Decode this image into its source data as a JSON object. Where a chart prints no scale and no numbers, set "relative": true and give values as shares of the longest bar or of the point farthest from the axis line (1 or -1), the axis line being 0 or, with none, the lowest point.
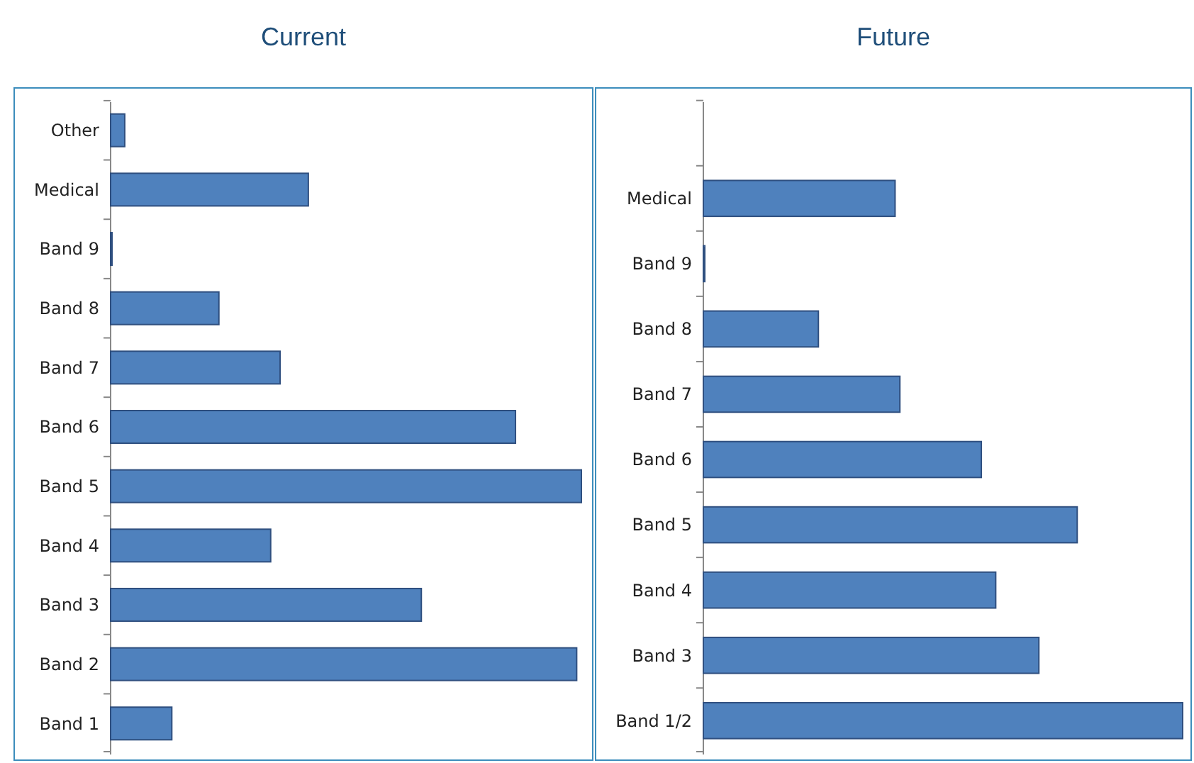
{
  "chart_data": [
    {
      "type": "bar",
      "orientation": "horizontal",
      "relative": true,
      "title": "Current",
      "categories": [
        "Other",
        "Medical",
        "Band 9",
        "Band 8",
        "Band 7",
        "Band 6",
        "Band 5",
        "Band 4",
        "Band 3",
        "Band 2",
        "Band 1"
      ],
      "values": [
        0.03,
        0.42,
        0.003,
        0.23,
        0.36,
        0.86,
        1,
        0.34,
        0.66,
        0.99,
        0.13
      ],
      "color": "#4f81bd"
    },
    {
      "type": "bar",
      "orientation": "horizontal",
      "relative": true,
      "title": "Future",
      "categories": [
        null,
        "Medical",
        "Band 9",
        "Band 8",
        "Band 7",
        "Band 6",
        "Band 5",
        "Band 4",
        "Band 3",
        "Band 1/2"
      ],
      "values": [
        null,
        0.4,
        0.003,
        0.24,
        0.41,
        0.58,
        0.78,
        0.61,
        0.7,
        1
      ],
      "color": "#4f81bd"
    }
  ]
}
